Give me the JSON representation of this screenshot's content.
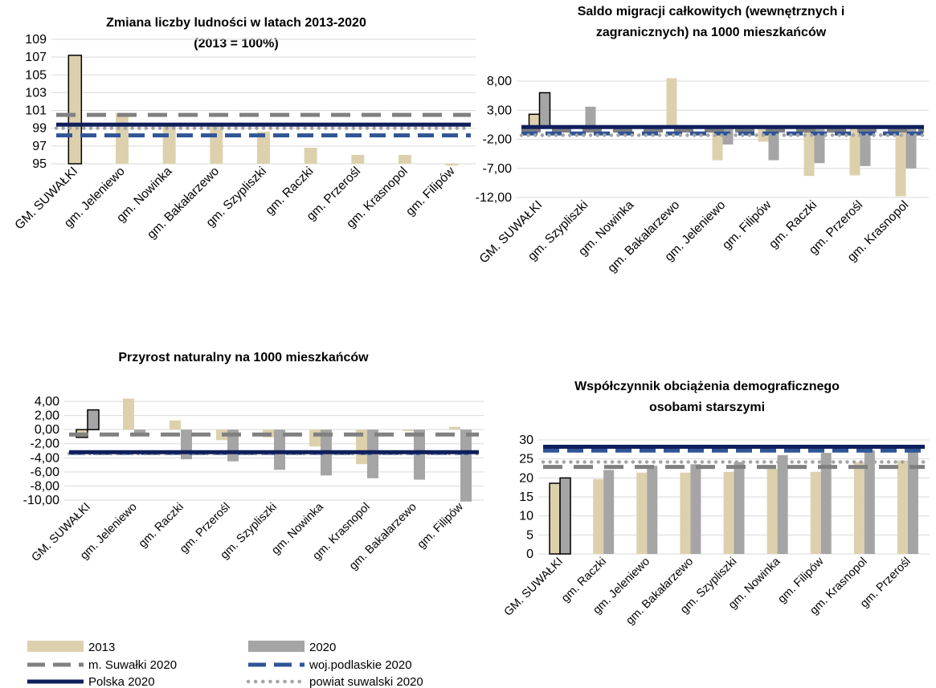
{
  "colors": {
    "y2013": "#ddd1ad",
    "y2020": "#a5a5a5",
    "suwalki_city": "#808080",
    "podlaskie": "#2f5597",
    "polska": "#0f1f5c",
    "powiat": "#a5a5a5",
    "grid": "#d9d9d9",
    "highlight_border": "#000000"
  },
  "legend": {
    "y2013": "2013",
    "y2020": "2020",
    "suwalki_city": "m. Suwałki 2020",
    "podlaskie": "woj.podlaskie 2020",
    "polska": "Polska 2020",
    "powiat": "powiat suwalski 2020"
  },
  "chart_data": [
    {
      "id": "population",
      "type": "bar",
      "title": [
        "Zmiana liczby ludności w latach 2013-2020",
        "(2013 = 100%)"
      ],
      "categories": [
        "GM. SUWAŁKI",
        "gm. Jeleniewo",
        "gm. Nowinka",
        "gm. Bakałarzewo",
        "gm. Szypliszki",
        "gm. Raczki",
        "gm. Przerośl",
        "gm. Krasnopol",
        "gm. Filipów"
      ],
      "series": [
        {
          "key": "y2013",
          "values": [
            107.2,
            100.7,
            99.5,
            99.2,
            98.6,
            96.8,
            96.0,
            96.0,
            94.8
          ]
        }
      ],
      "reference_lines": {
        "suwalki_city": 100.5,
        "podlaskie": 98.2,
        "polska": 99.4,
        "powiat": 99.0
      },
      "ylim": [
        95,
        109
      ],
      "yticks": [
        95,
        97,
        99,
        101,
        103,
        105,
        107,
        109
      ],
      "ytick_labels": [
        "95",
        "97",
        "99",
        "101",
        "103",
        "105",
        "107",
        "109"
      ],
      "highlight_index": 0,
      "grid": true
    },
    {
      "id": "migration",
      "type": "bar",
      "title": [
        "Saldo migracji całkowitych (wewnętrznych i",
        "zagranicznych) na 1000 mieszkańców"
      ],
      "categories": [
        "GM. SUWAŁKI",
        "gm. Szypliszki",
        "gm. Nowinka",
        "gm. Bakałarzewo",
        "gm. Jeleniewo",
        "gm. Filipów",
        "gm. Raczki",
        "gm. Przerośl",
        "gm. Krasnopol"
      ],
      "series": [
        {
          "key": "y2013",
          "values": [
            2.3,
            0.0,
            0.0,
            8.5,
            -5.6,
            -2.4,
            -8.3,
            -8.2,
            -11.8
          ]
        },
        {
          "key": "y2020",
          "values": [
            6.0,
            3.6,
            0.0,
            0.0,
            -2.9,
            -5.6,
            -6.1,
            -6.6,
            -7.0
          ]
        }
      ],
      "reference_lines": {
        "suwalki_city": -0.5,
        "podlaskie": -1.0,
        "polska": 0.1,
        "powiat": -1.3
      },
      "ylim": [
        -12,
        8
      ],
      "yticks": [
        -12,
        -7,
        -2,
        3,
        8
      ],
      "ytick_labels": [
        "-12,00",
        "-7,00",
        "-2,00",
        "3,00",
        "8,00"
      ],
      "highlight_index": 0,
      "grid": true
    },
    {
      "id": "natural_increase",
      "type": "bar",
      "title": [
        "Przyrost naturalny na 1000 mieszkańców"
      ],
      "categories": [
        "GM. SUWAŁKI",
        "gm. Jeleniewo",
        "gm. Raczki",
        "gm. Przerośl",
        "gm. Szypliszki",
        "gm. Nowinka",
        "gm. Krasnopol",
        "gm. Bakałarzewo",
        "gm. Filipów"
      ],
      "series": [
        {
          "key": "y2013",
          "values": [
            -1.1,
            4.4,
            1.3,
            -1.5,
            -1.1,
            -2.4,
            -4.9,
            -0.2,
            0.4
          ]
        },
        {
          "key": "y2020",
          "values": [
            2.8,
            -0.7,
            -4.2,
            -4.5,
            -5.7,
            -6.5,
            -6.9,
            -7.1,
            -10.2
          ]
        }
      ],
      "reference_lines": {
        "suwalki_city": -0.7,
        "podlaskie": -3.3,
        "polska": -3.2,
        "powiat": -3.4
      },
      "ylim": [
        -10,
        4
      ],
      "yticks": [
        -10,
        -8,
        -6,
        -4,
        -2,
        0,
        2,
        4
      ],
      "ytick_labels": [
        "-10,00",
        "-8,00",
        "-6,00",
        "-4,00",
        "-2,00",
        "0,00",
        "2,00",
        "4,00"
      ],
      "highlight_index": 0,
      "grid": true
    },
    {
      "id": "dependency",
      "type": "bar",
      "title": [
        "Współczynnik obciążenia demograficznego",
        "osobami starszymi"
      ],
      "categories": [
        "GM. SUWAŁKI",
        "gm. Raczki",
        "gm. Jeleniewo",
        "gm. Bakałarzewo",
        "gm. Szypliszki",
        "gm. Nowinka",
        "gm. Filipów",
        "gm. Krasnopol",
        "gm. Przerośl"
      ],
      "series": [
        {
          "key": "y2013",
          "values": [
            18.6,
            19.7,
            21.4,
            21.4,
            21.6,
            22.4,
            21.6,
            24.2,
            24.6
          ]
        },
        {
          "key": "y2020",
          "values": [
            20.0,
            22.1,
            23.2,
            23.6,
            24.2,
            26.0,
            26.6,
            27.3,
            27.3
          ]
        }
      ],
      "reference_lines": {
        "suwalki_city": 22.9,
        "podlaskie": 27.2,
        "polska": 28.2,
        "powiat": 24.2
      },
      "ylim": [
        0,
        30
      ],
      "yticks": [
        0,
        5,
        10,
        15,
        20,
        25,
        30
      ],
      "ytick_labels": [
        "0",
        "5",
        "10",
        "15",
        "20",
        "25",
        "30"
      ],
      "highlight_index": 0,
      "grid": true
    }
  ]
}
